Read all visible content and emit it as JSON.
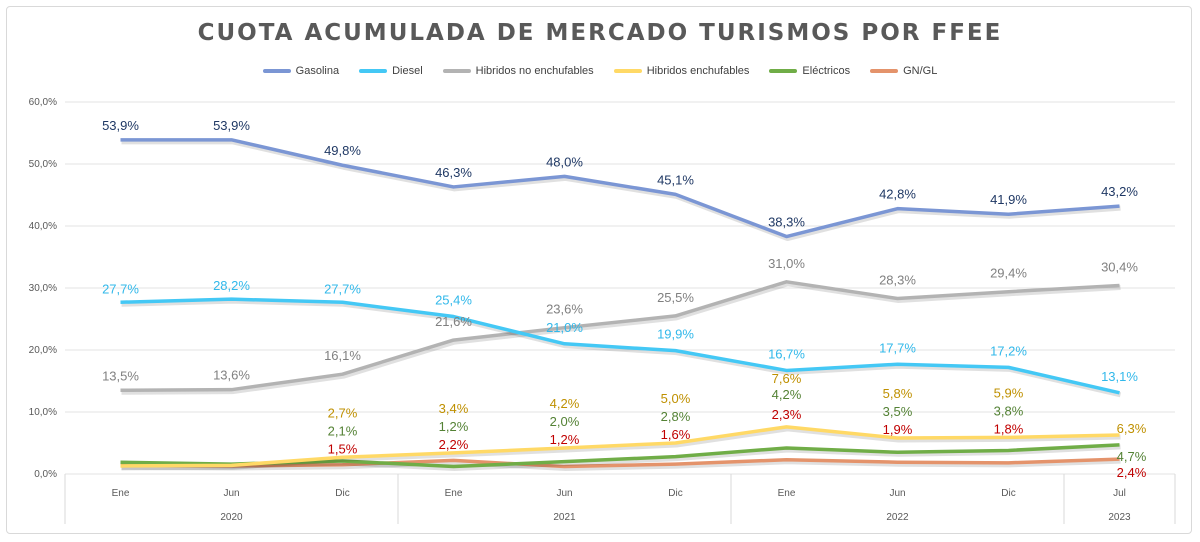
{
  "chart_data": {
    "type": "line",
    "title": "CUOTA ACUMULADA DE MERCADO TURISMOS POR FFEE",
    "ylim": [
      0,
      60
    ],
    "yticks": [
      "0,0%",
      "10,0%",
      "20,0%",
      "30,0%",
      "40,0%",
      "50,0%",
      "60,0%"
    ],
    "grid": "horizontal",
    "legend": "top",
    "categories": [
      "Ene",
      "Jun",
      "Dic",
      "Ene",
      "Jun",
      "Dic",
      "Ene",
      "Jun",
      "Dic",
      "Jul"
    ],
    "years": [
      {
        "label": "2020",
        "start": 0,
        "end": 2
      },
      {
        "label": "2021",
        "start": 3,
        "end": 5
      },
      {
        "label": "2022",
        "start": 6,
        "end": 8
      },
      {
        "label": "2023",
        "start": 9,
        "end": 9
      }
    ],
    "series": [
      {
        "name": "Gasolina",
        "color": "#7b96d4",
        "label_color": "#1f3864",
        "values": [
          53.9,
          53.9,
          49.8,
          46.3,
          48.0,
          45.1,
          38.3,
          42.8,
          41.9,
          43.2
        ],
        "labels": [
          "53,9%",
          "53,9%",
          "49,8%",
          "46,3%",
          "48,0%",
          "45,1%",
          "38,3%",
          "42,8%",
          "41,9%",
          "43,2%"
        ]
      },
      {
        "name": "Diesel",
        "color": "#44c8f5",
        "label_color": "#31b8ea",
        "values": [
          27.7,
          28.2,
          27.7,
          25.4,
          21.0,
          19.9,
          16.7,
          17.7,
          17.2,
          13.1
        ],
        "labels": [
          "27,7%",
          "28,2%",
          "27,7%",
          "25,4%",
          "21,0%",
          "19,9%",
          "16,7%",
          "17,7%",
          "17,2%",
          "13,1%"
        ]
      },
      {
        "name": "Hibridos no enchufables",
        "color": "#b3b3b3",
        "label_color": "#808080",
        "values": [
          13.5,
          13.6,
          16.1,
          21.6,
          23.6,
          25.5,
          31.0,
          28.3,
          29.4,
          30.4
        ],
        "labels": [
          "13,5%",
          "13,6%",
          "16,1%",
          "21,6%",
          "23,6%",
          "25,5%",
          "31,0%",
          "28,3%",
          "29,4%",
          "30,4%"
        ]
      },
      {
        "name": "Hibridos enchufables",
        "color": "#ffd966",
        "label_color": "#bf9000",
        "values": [
          1.3,
          1.4,
          2.7,
          3.4,
          4.2,
          5.0,
          7.6,
          5.8,
          5.9,
          6.3
        ],
        "labels": [
          "",
          "",
          "2,7%",
          "3,4%",
          "4,2%",
          "5,0%",
          "7,6%",
          "5,8%",
          "5,9%",
          "6,3%"
        ]
      },
      {
        "name": "Eléctricos",
        "color": "#70ad47",
        "label_color": "#548235",
        "values": [
          1.9,
          1.6,
          2.1,
          1.2,
          2.0,
          2.8,
          4.2,
          3.5,
          3.8,
          4.7
        ],
        "labels": [
          "",
          "",
          "2,1%",
          "1,2%",
          "2,0%",
          "2,8%",
          "4,2%",
          "3,5%",
          "3,8%",
          "4,7%"
        ]
      },
      {
        "name": "GN/GL",
        "color": "#e4936b",
        "label_color": "#c00000",
        "values": [
          1.4,
          1.3,
          1.5,
          2.2,
          1.2,
          1.6,
          2.3,
          1.9,
          1.8,
          2.4
        ],
        "labels": [
          "",
          "",
          "1,5%",
          "2,2%",
          "1,2%",
          "1,6%",
          "2,3%",
          "1,9%",
          "1,8%",
          "2,4%"
        ]
      }
    ]
  }
}
